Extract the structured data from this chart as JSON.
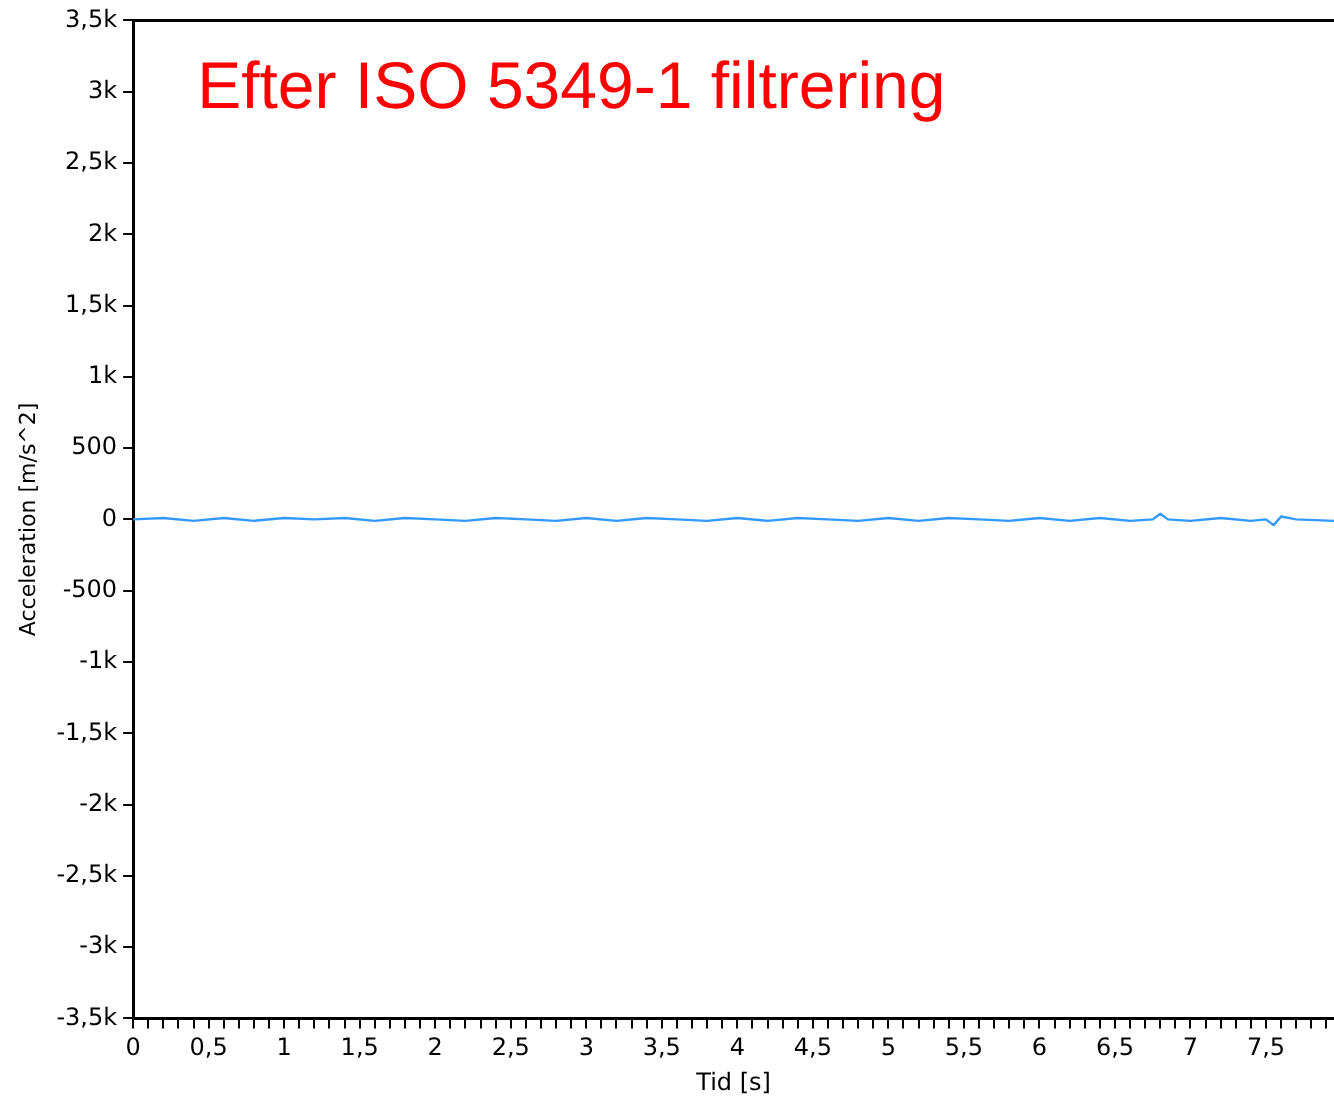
{
  "chart_data": {
    "type": "line",
    "title": "Efter ISO 5349-1 filtrering",
    "xlabel": "Tid [s]",
    "ylabel": "Acceleration [m/s^2]",
    "x": [
      0,
      0.2,
      0.4,
      0.6,
      0.8,
      1,
      1.2,
      1.4,
      1.6,
      1.8,
      2,
      2.2,
      2.4,
      2.6,
      2.8,
      3,
      3.2,
      3.4,
      3.6,
      3.8,
      4,
      4.2,
      4.4,
      4.6,
      4.8,
      5,
      5.2,
      5.4,
      5.6,
      5.8,
      6,
      6.2,
      6.4,
      6.6,
      6.75,
      6.8,
      6.85,
      7,
      7.2,
      7.4,
      7.5,
      7.55,
      7.6,
      7.7,
      7.95
    ],
    "series": [
      {
        "color": "#3399ff",
        "values": [
          0,
          10,
          -10,
          10,
          -10,
          10,
          0,
          10,
          -10,
          10,
          0,
          -10,
          10,
          0,
          -10,
          10,
          -10,
          10,
          0,
          -10,
          10,
          -10,
          10,
          0,
          -10,
          10,
          -10,
          10,
          0,
          -10,
          10,
          -10,
          10,
          -10,
          0,
          40,
          0,
          -10,
          10,
          -10,
          0,
          -40,
          20,
          0,
          -10
        ]
      }
    ],
    "xlim": [
      0,
      7.95
    ],
    "xticks": [
      0,
      {
        "value": 0.1,
        "label": null
      },
      {
        "value": 0.2,
        "label": null
      },
      {
        "value": 0.3,
        "label": null
      },
      {
        "value": 0.4,
        "label": null
      },
      {
        "value": 0.5,
        "label": "0,5"
      },
      {
        "value": 0.6,
        "label": null
      },
      {
        "value": 0.7,
        "label": null
      },
      {
        "value": 0.8,
        "label": null
      },
      {
        "value": 0.9,
        "label": null
      },
      1,
      {
        "value": 1.1,
        "label": null
      },
      {
        "value": 1.2,
        "label": null
      },
      {
        "value": 1.3,
        "label": null
      },
      {
        "value": 1.4,
        "label": null
      },
      {
        "value": 1.5,
        "label": "1,5"
      },
      {
        "value": 1.6,
        "label": null
      },
      {
        "value": 1.7,
        "label": null
      },
      {
        "value": 1.8,
        "label": null
      },
      {
        "value": 1.9,
        "label": null
      },
      2,
      {
        "value": 2.1,
        "label": null
      },
      {
        "value": 2.2,
        "label": null
      },
      {
        "value": 2.3,
        "label": null
      },
      {
        "value": 2.4,
        "label": null
      },
      {
        "value": 2.5,
        "label": "2,5"
      },
      {
        "value": 2.6,
        "label": null
      },
      {
        "value": 2.7,
        "label": null
      },
      {
        "value": 2.8,
        "label": null
      },
      {
        "value": 2.9,
        "label": null
      },
      3,
      {
        "value": 3.1,
        "label": null
      },
      {
        "value": 3.2,
        "label": null
      },
      {
        "value": 3.3,
        "label": null
      },
      {
        "value": 3.4,
        "label": null
      },
      {
        "value": 3.5,
        "label": "3,5"
      },
      {
        "value": 3.6,
        "label": null
      },
      {
        "value": 3.7,
        "label": null
      },
      {
        "value": 3.8,
        "label": null
      },
      {
        "value": 3.9,
        "label": null
      },
      4,
      {
        "value": 4.1,
        "label": null
      },
      {
        "value": 4.2,
        "label": null
      },
      {
        "value": 4.3,
        "label": null
      },
      {
        "value": 4.4,
        "label": null
      },
      {
        "value": 4.5,
        "label": "4,5"
      },
      {
        "value": 4.6,
        "label": null
      },
      {
        "value": 4.7,
        "label": null
      },
      {
        "value": 4.8,
        "label": null
      },
      {
        "value": 4.9,
        "label": null
      },
      5,
      {
        "value": 5.1,
        "label": null
      },
      {
        "value": 5.2,
        "label": null
      },
      {
        "value": 5.3,
        "label": null
      },
      {
        "value": 5.4,
        "label": null
      },
      {
        "value": 5.5,
        "label": "5,5"
      },
      {
        "value": 5.6,
        "label": null
      },
      {
        "value": 5.7,
        "label": null
      },
      {
        "value": 5.8,
        "label": null
      },
      {
        "value": 5.9,
        "label": null
      },
      6,
      {
        "value": 6.1,
        "label": null
      },
      {
        "value": 6.2,
        "label": null
      },
      {
        "value": 6.3,
        "label": null
      },
      {
        "value": 6.4,
        "label": null
      },
      {
        "value": 6.5,
        "label": "6,5"
      },
      {
        "value": 6.6,
        "label": null
      },
      {
        "value": 6.7,
        "label": null
      },
      {
        "value": 6.8,
        "label": null
      },
      {
        "value": 6.9,
        "label": null
      },
      7,
      {
        "value": 7.1,
        "label": null
      },
      {
        "value": 7.2,
        "label": null
      },
      {
        "value": 7.3,
        "label": null
      },
      {
        "value": 7.4,
        "label": null
      },
      {
        "value": 7.5,
        "label": "7,5"
      },
      {
        "value": 7.6,
        "label": null
      },
      {
        "value": 7.7,
        "label": null
      },
      {
        "value": 7.8,
        "label": null
      },
      {
        "value": 7.9,
        "label": null
      }
    ],
    "ylim": [
      -3500,
      3500
    ],
    "yticks": [
      {
        "value": -3500,
        "label": "-3,5k"
      },
      {
        "value": -3000,
        "label": "-3k"
      },
      {
        "value": -2500,
        "label": "-2,5k"
      },
      {
        "value": -2000,
        "label": "-2k"
      },
      {
        "value": -1500,
        "label": "-1,5k"
      },
      {
        "value": -1000,
        "label": "-1k"
      },
      -500,
      0,
      500,
      {
        "value": 1000,
        "label": "1k"
      },
      {
        "value": 1500,
        "label": "1,5k"
      },
      {
        "value": 2000,
        "label": "2k"
      },
      {
        "value": 2500,
        "label": "2,5k"
      },
      {
        "value": 3000,
        "label": "3k"
      },
      {
        "value": 3500,
        "label": "3,5k"
      }
    ],
    "grid": false,
    "legend": false,
    "marker": "none",
    "line_style": "solid"
  }
}
